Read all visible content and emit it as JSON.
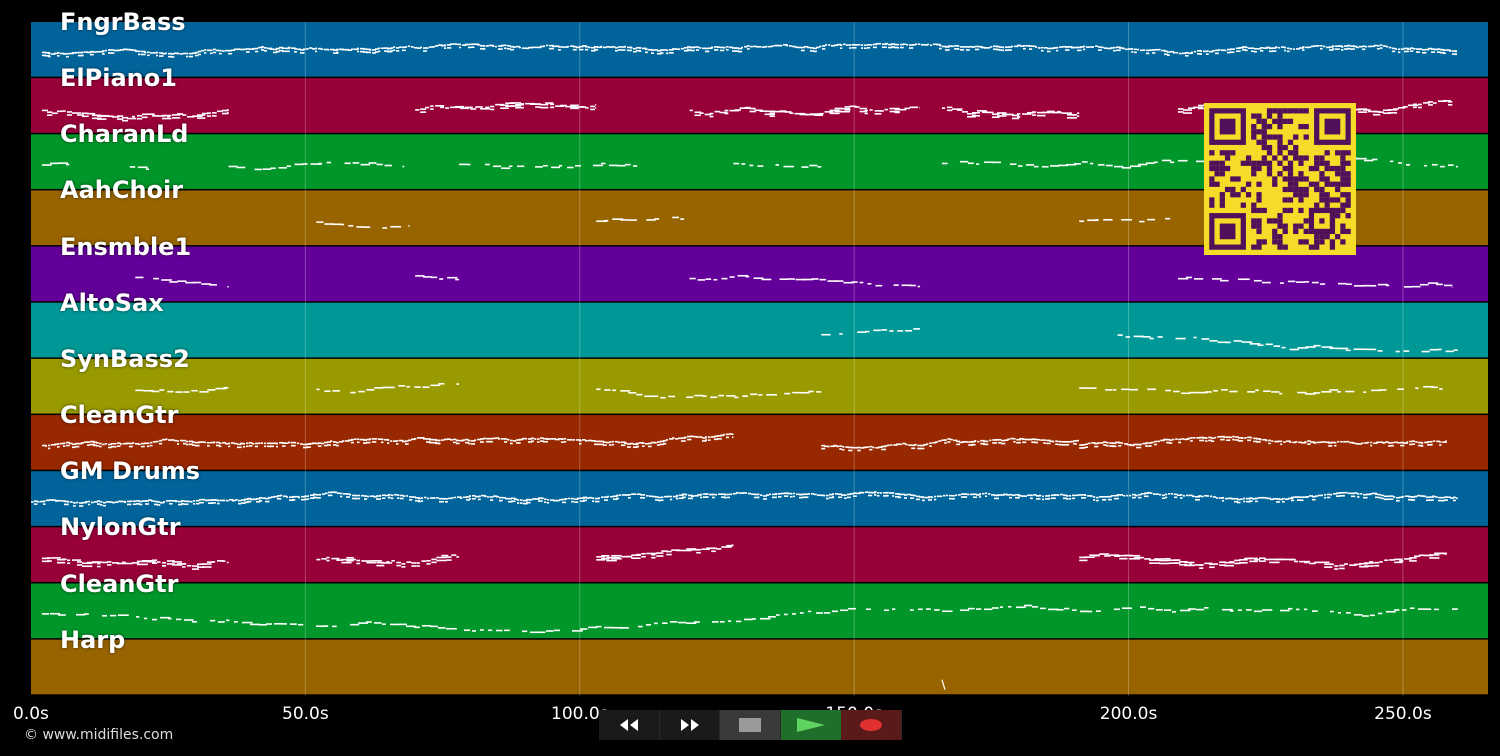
{
  "copyright": "© www.midifiles.com",
  "time_axis": {
    "max_seconds": 265.5,
    "ticks": [
      {
        "seconds": 0,
        "label": "0.0s"
      },
      {
        "seconds": 50,
        "label": "50.0s"
      },
      {
        "seconds": 100,
        "label": "100.0s"
      },
      {
        "seconds": 150,
        "label": "150.0s"
      },
      {
        "seconds": 200,
        "label": "200.0s"
      },
      {
        "seconds": 250,
        "label": "250.0s"
      }
    ]
  },
  "tracks": [
    {
      "name": "FngrBass",
      "color": "#00649a",
      "density": "dense",
      "segments": [
        [
          2,
          260
        ]
      ]
    },
    {
      "name": "ElPiano1",
      "color": "#98003a",
      "density": "medium",
      "segments": [
        [
          2,
          36
        ],
        [
          70,
          103
        ],
        [
          120,
          162
        ],
        [
          166,
          191
        ],
        [
          209,
          259
        ]
      ]
    },
    {
      "name": "CharanLd",
      "color": "#00962a",
      "density": "sparse",
      "segments": [
        [
          2,
          7
        ],
        [
          18,
          22
        ],
        [
          36,
          68
        ],
        [
          78,
          112
        ],
        [
          128,
          144
        ],
        [
          166,
          260
        ]
      ]
    },
    {
      "name": "AahChoir",
      "color": "#986400",
      "density": "sparse",
      "segments": [
        [
          52,
          69
        ],
        [
          103,
          119
        ],
        [
          191,
          208
        ]
      ]
    },
    {
      "name": "Ensmble1",
      "color": "#64009a",
      "density": "sparse",
      "segments": [
        [
          19,
          36
        ],
        [
          70,
          78
        ],
        [
          120,
          162
        ],
        [
          209,
          259
        ]
      ]
    },
    {
      "name": "AltoSax",
      "color": "#009896",
      "density": "sparse",
      "segments": [
        [
          144,
          162
        ],
        [
          198,
          260
        ]
      ]
    },
    {
      "name": "SynBass2",
      "color": "#989a00",
      "density": "sparse",
      "segments": [
        [
          19,
          36
        ],
        [
          52,
          78
        ],
        [
          103,
          144
        ],
        [
          191,
          258
        ]
      ]
    },
    {
      "name": "CleanGtr",
      "color": "#982800",
      "density": "dense",
      "segments": [
        [
          2,
          128
        ],
        [
          144,
          191
        ],
        [
          191,
          258
        ]
      ]
    },
    {
      "name": "GM Drums",
      "color": "#00649a",
      "density": "dense",
      "segments": [
        [
          0,
          260
        ]
      ]
    },
    {
      "name": "NylonGtr",
      "color": "#98003a",
      "density": "medium",
      "segments": [
        [
          2,
          36
        ],
        [
          52,
          78
        ],
        [
          103,
          128
        ],
        [
          191,
          258
        ]
      ]
    },
    {
      "name": "CleanGtr",
      "color": "#00962a",
      "density": "sparse",
      "segments": [
        [
          2,
          260
        ]
      ]
    },
    {
      "name": "Harp",
      "color": "#986400",
      "density": "single",
      "segments": [
        [
          166,
          166.5
        ]
      ]
    }
  ],
  "transport": {
    "rewind_icon": "rewind-icon",
    "forward_icon": "fast-forward-icon",
    "stop_icon": "stop-icon",
    "play_icon": "play-icon",
    "record_icon": "record-icon",
    "colors": {
      "play": "#5fd35f",
      "record": "#e03030",
      "stop": "#9a9a9a"
    }
  },
  "qr": {
    "fg": "#50105a",
    "bg": "#f5dc28"
  }
}
